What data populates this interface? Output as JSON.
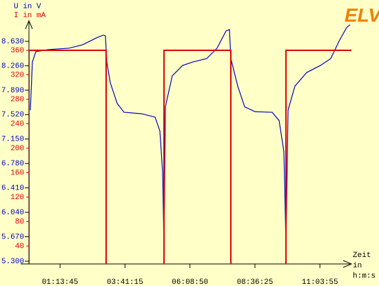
{
  "chart_data": {
    "type": "line",
    "logo": "ELV",
    "y_label": "U in V",
    "y2_label": "I in mA",
    "x_label": [
      "Zeit",
      "in",
      "h:m:s"
    ],
    "xlim": [
      0,
      44133
    ],
    "xticks": [
      {
        "value": 4425,
        "label": "01:13:45"
      },
      {
        "value": 13275,
        "label": "03:41:15"
      },
      {
        "value": 22130,
        "label": "06:08:50"
      },
      {
        "value": 30985,
        "label": "08:36:25"
      },
      {
        "value": 39835,
        "label": "11:03:55"
      }
    ],
    "ylim": [
      5.258,
      8.943
    ],
    "yticks": [
      {
        "value": 8.63,
        "label": "8.630"
      },
      {
        "value": 8.26,
        "label": "8.260"
      },
      {
        "value": 7.89,
        "label": "7.890"
      },
      {
        "value": 7.52,
        "label": "7.520"
      },
      {
        "value": 7.15,
        "label": "7.150"
      },
      {
        "value": 6.78,
        "label": "6.780"
      },
      {
        "value": 6.41,
        "label": "6.410"
      },
      {
        "value": 6.04,
        "label": "6.040"
      },
      {
        "value": 5.67,
        "label": "5.670"
      },
      {
        "value": 5.3,
        "label": "5.300"
      }
    ],
    "y2lim": [
      10.7,
      408.5
    ],
    "y2ticks": [
      360,
      320,
      280,
      240,
      200,
      160,
      120,
      80,
      40
    ],
    "series": [
      {
        "name": "U",
        "color": "#0000c0",
        "x": [
          376,
          657,
          1127,
          2817,
          5634,
          7512,
          9390,
          10329,
          10611,
          10799,
          11268,
          12207,
          13146,
          15494,
          17372,
          18029,
          18404,
          18592,
          18780,
          19719,
          21128,
          22536,
          24414,
          25823,
          27043,
          27513,
          27701,
          28640,
          29579,
          30987,
          33335,
          34274,
          34931,
          35213,
          35494,
          36433,
          38030,
          39908,
          41316,
          42443,
          43476,
          43945
        ],
        "values": [
          7.586,
          8.317,
          8.474,
          8.505,
          8.526,
          8.578,
          8.683,
          8.724,
          8.714,
          8.317,
          8.004,
          7.691,
          7.555,
          7.534,
          7.482,
          7.273,
          6.647,
          5.551,
          7.639,
          8.108,
          8.265,
          8.317,
          8.369,
          8.526,
          8.787,
          8.808,
          8.369,
          7.952,
          7.639,
          7.565,
          7.555,
          7.43,
          6.96,
          5.551,
          7.586,
          7.952,
          8.157,
          8.265,
          8.369,
          8.631,
          8.839,
          8.881
        ]
      },
      {
        "name": "I",
        "color": "#e00000",
        "axis": "y2",
        "x": [
          188,
          188,
          10705,
          10705,
          18592,
          18592,
          27701,
          27701,
          35213,
          35213,
          44133
        ],
        "values": [
          0,
          360,
          360,
          0,
          0,
          360,
          360,
          0,
          0,
          360,
          360
        ]
      }
    ]
  }
}
